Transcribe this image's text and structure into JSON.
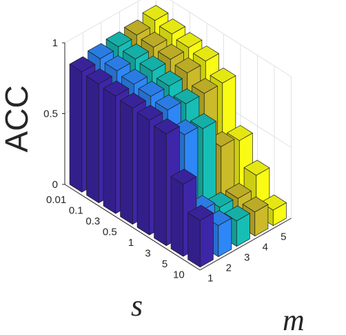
{
  "chart_data": {
    "type": "bar3d",
    "ylabel": "ACC",
    "s_axis": {
      "label": "s",
      "ticks": [
        "0.01",
        "0.1",
        "0.3",
        "0.5",
        "1",
        "3",
        "5",
        "10"
      ]
    },
    "m_axis": {
      "label": "m",
      "ticks": [
        "1",
        "2",
        "3",
        "4",
        "5"
      ]
    },
    "z_axis": {
      "ticks": [
        "0",
        "0.5",
        "1"
      ],
      "zlim": [
        0,
        1
      ]
    },
    "series": [
      {
        "m": "1",
        "color": "#3e26a8",
        "values": [
          0.85,
          0.84,
          0.83,
          0.82,
          0.81,
          0.79,
          0.51,
          0.33
        ]
      },
      {
        "m": "2",
        "color": "#2e87f7",
        "values": [
          0.87,
          0.86,
          0.84,
          0.83,
          0.81,
          0.71,
          0.25,
          0.22
        ]
      },
      {
        "m": "3",
        "color": "#17beb5",
        "values": [
          0.88,
          0.87,
          0.86,
          0.83,
          0.78,
          0.68,
          0.2,
          0.18
        ]
      },
      {
        "m": "4",
        "color": "#cbba2a",
        "values": [
          0.89,
          0.88,
          0.87,
          0.85,
          0.78,
          0.48,
          0.19,
          0.17
        ]
      },
      {
        "m": "5",
        "color": "#f9fb15",
        "values": [
          0.92,
          0.9,
          0.88,
          0.86,
          0.78,
          0.45,
          0.28,
          0.11
        ]
      }
    ],
    "grid": true
  }
}
